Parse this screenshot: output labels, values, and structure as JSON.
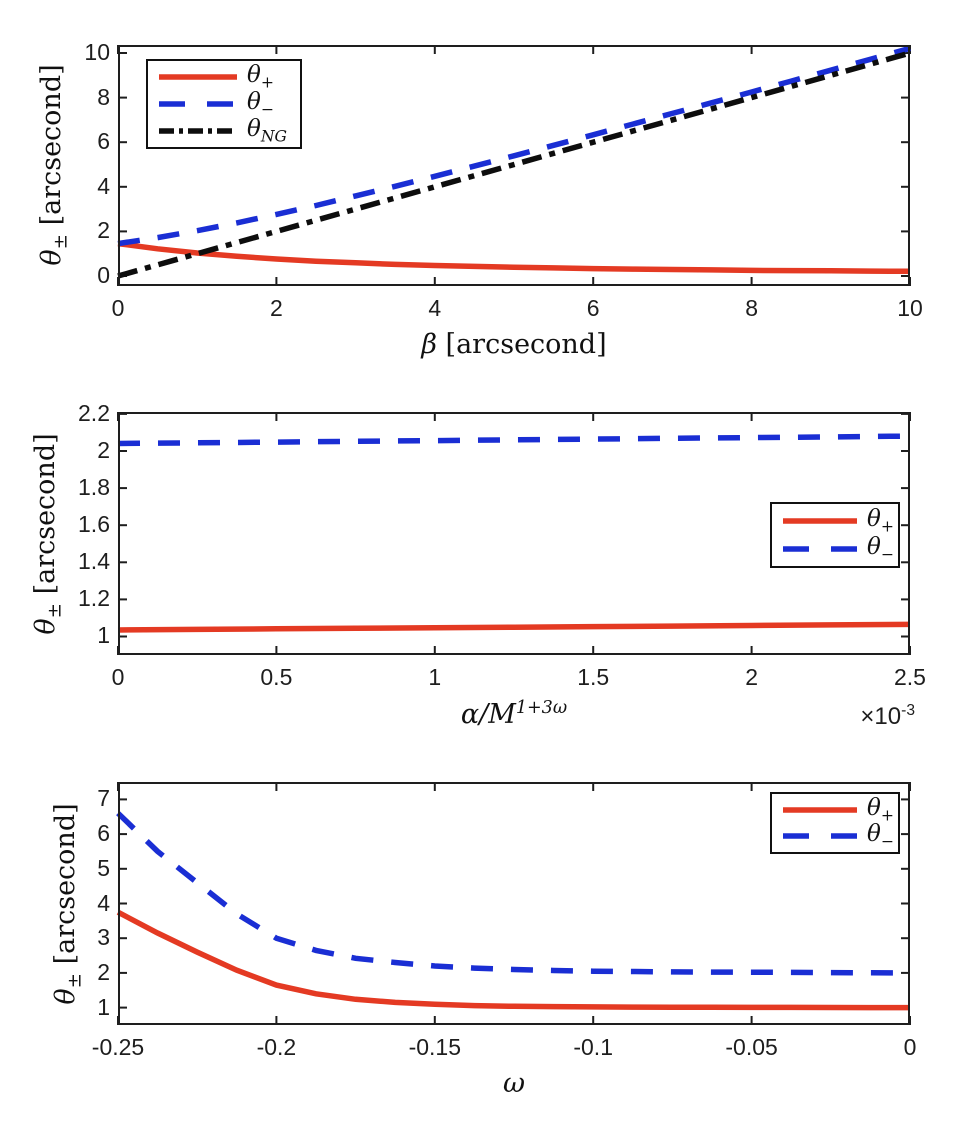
{
  "figure": {
    "background": "#ffffff",
    "axis_color": "#1e1e1e",
    "text_color": "#1e1e1e",
    "accent_red": "#E43A23",
    "accent_blue": "#1A2ED4",
    "accent_black": "#0d0d0d"
  },
  "chart_data": [
    {
      "type": "line",
      "title": "",
      "xlabel_var": "β",
      "xlabel_rest": " [arcsecond]",
      "ylabel_var": "θ",
      "ylabel_sub": "±",
      "ylabel_rest": " [arcsecond]",
      "xlim": [
        0,
        10
      ],
      "ylim": [
        -0.45,
        10.36
      ],
      "xticks": [
        0,
        2,
        4,
        6,
        8,
        10
      ],
      "xtick_labels": [
        "0",
        "2",
        "4",
        "6",
        "8",
        "10"
      ],
      "yticks": [
        0,
        2,
        4,
        6,
        8,
        10
      ],
      "ytick_labels": [
        "0",
        "2",
        "4",
        "6",
        "8",
        "10"
      ],
      "grid": false,
      "legend_position": "northwest",
      "series": [
        {
          "name": "theta_plus",
          "label_base": "θ",
          "label_sub": "+",
          "color": "#E43A23",
          "style": "solid",
          "x": [
            0,
            0.5,
            1,
            1.5,
            2,
            2.5,
            3,
            3.5,
            4,
            4.5,
            5,
            5.5,
            6,
            6.5,
            7,
            7.5,
            8,
            8.5,
            9,
            9.5,
            10
          ],
          "y": [
            1.45,
            1.22,
            1.03,
            0.88,
            0.76,
            0.66,
            0.59,
            0.52,
            0.47,
            0.43,
            0.39,
            0.36,
            0.33,
            0.31,
            0.29,
            0.27,
            0.25,
            0.24,
            0.23,
            0.22,
            0.21
          ]
        },
        {
          "name": "theta_minus",
          "label_base": "θ",
          "label_sub": "−",
          "color": "#1A2ED4",
          "style": "dashed",
          "x": [
            0,
            0.5,
            1,
            1.5,
            2,
            2.5,
            3,
            3.5,
            4,
            4.5,
            5,
            5.5,
            6,
            6.5,
            7,
            7.5,
            8,
            8.5,
            9,
            9.5,
            10
          ],
          "y": [
            1.45,
            1.72,
            2.03,
            2.38,
            2.76,
            3.16,
            3.59,
            4.02,
            4.47,
            4.93,
            5.39,
            5.86,
            6.33,
            6.81,
            7.29,
            7.77,
            8.25,
            8.74,
            9.23,
            9.72,
            10.21
          ]
        },
        {
          "name": "theta_NG",
          "label_base": "θ",
          "label_sub": "NG",
          "color": "#0d0d0d",
          "style": "dashdot",
          "x": [
            0,
            10
          ],
          "y": [
            0,
            10
          ]
        }
      ]
    },
    {
      "type": "line",
      "title": "",
      "xlabel_var": "α/M",
      "xlabel_sup": "1+3ω",
      "offset_base": "×10",
      "offset_sup": "-3",
      "ylabel_var": "θ",
      "ylabel_sub": "±",
      "ylabel_rest": " [arcsecond]",
      "x_units_note": "x axis values are in units of 10^-3",
      "xlim": [
        0,
        2.5
      ],
      "ylim": [
        0.9,
        2.21
      ],
      "xticks": [
        0,
        0.5,
        1,
        1.5,
        2,
        2.5
      ],
      "xtick_labels": [
        "0",
        "0.5",
        "1",
        "1.5",
        "2",
        "2.5"
      ],
      "yticks": [
        1,
        1.2,
        1.4,
        1.6,
        1.8,
        2,
        2.2
      ],
      "ytick_labels": [
        "1",
        "1.2",
        "1.4",
        "1.6",
        "1.8",
        "2",
        "2.2"
      ],
      "grid": false,
      "legend_position": "east",
      "series": [
        {
          "name": "theta_plus",
          "label_base": "θ",
          "label_sub": "+",
          "color": "#E43A23",
          "style": "solid",
          "x": [
            0,
            0.25,
            0.5,
            0.75,
            1,
            1.25,
            1.5,
            1.75,
            2,
            2.25,
            2.5
          ],
          "y": [
            1.035,
            1.038,
            1.041,
            1.044,
            1.047,
            1.05,
            1.053,
            1.056,
            1.059,
            1.062,
            1.065
          ]
        },
        {
          "name": "theta_minus",
          "label_base": "θ",
          "label_sub": "−",
          "color": "#1A2ED4",
          "style": "dashed",
          "x": [
            0,
            0.25,
            0.5,
            0.75,
            1,
            1.25,
            1.5,
            1.75,
            2,
            2.25,
            2.5
          ],
          "y": [
            2.04,
            2.044,
            2.048,
            2.052,
            2.056,
            2.06,
            2.064,
            2.068,
            2.072,
            2.076,
            2.08
          ]
        }
      ]
    },
    {
      "type": "line",
      "title": "",
      "xlabel_var": "ω",
      "ylabel_var": "θ",
      "ylabel_sub": "±",
      "ylabel_rest": " [arcsecond]",
      "xlim": [
        -0.25,
        0
      ],
      "ylim": [
        0.5,
        7.5
      ],
      "xticks": [
        -0.25,
        -0.2,
        -0.15,
        -0.1,
        -0.05,
        0
      ],
      "xtick_labels": [
        "-0.25",
        "-0.2",
        "-0.15",
        "-0.1",
        "-0.05",
        "0"
      ],
      "yticks": [
        1,
        2,
        3,
        4,
        5,
        6,
        7
      ],
      "ytick_labels": [
        "1",
        "2",
        "3",
        "4",
        "5",
        "6",
        "7"
      ],
      "grid": false,
      "legend_position": "northeast",
      "series": [
        {
          "name": "theta_plus",
          "label_base": "θ",
          "label_sub": "+",
          "color": "#E43A23",
          "style": "solid",
          "x": [
            -0.25,
            -0.2375,
            -0.225,
            -0.2125,
            -0.2,
            -0.1875,
            -0.175,
            -0.1625,
            -0.15,
            -0.1375,
            -0.125,
            -0.1125,
            -0.1,
            -0.0875,
            -0.075,
            -0.0625,
            -0.05,
            -0.0375,
            -0.025,
            -0.0125,
            0
          ],
          "y": [
            3.75,
            3.15,
            2.6,
            2.08,
            1.65,
            1.4,
            1.24,
            1.15,
            1.1,
            1.06,
            1.04,
            1.03,
            1.02,
            1.015,
            1.012,
            1.01,
            1.008,
            1.006,
            1.004,
            1.002,
            1.0
          ]
        },
        {
          "name": "theta_minus",
          "label_base": "θ",
          "label_sub": "−",
          "color": "#1A2ED4",
          "style": "dashed",
          "x": [
            -0.25,
            -0.2375,
            -0.225,
            -0.2125,
            -0.2,
            -0.1875,
            -0.175,
            -0.1625,
            -0.15,
            -0.1375,
            -0.125,
            -0.1125,
            -0.1,
            -0.0875,
            -0.075,
            -0.0625,
            -0.05,
            -0.0375,
            -0.025,
            -0.0125,
            0
          ],
          "y": [
            6.6,
            5.5,
            4.6,
            3.7,
            3.0,
            2.65,
            2.42,
            2.3,
            2.2,
            2.14,
            2.1,
            2.07,
            2.05,
            2.04,
            2.03,
            2.025,
            2.02,
            2.015,
            2.01,
            2.005,
            2.0
          ]
        }
      ]
    }
  ]
}
